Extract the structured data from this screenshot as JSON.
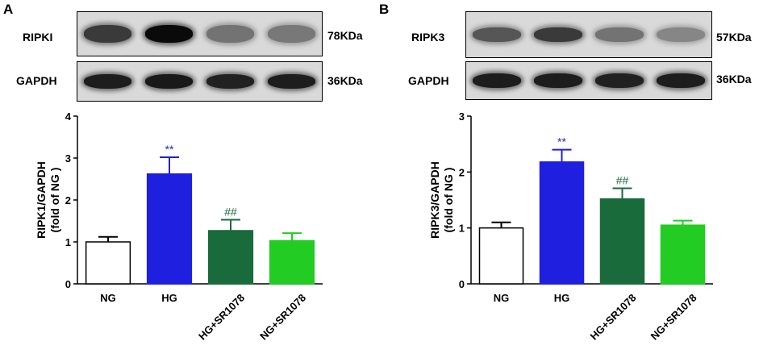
{
  "panels": [
    {
      "letter": "A",
      "blots": [
        {
          "protein": "RIPKI",
          "kda": "78KDa",
          "band_intensity": [
            0.75,
            1.0,
            0.45,
            0.42
          ]
        },
        {
          "protein": "GAPDH",
          "kda": "36KDa",
          "band_intensity": [
            0.9,
            0.92,
            0.88,
            0.9
          ]
        }
      ]
    },
    {
      "letter": "B",
      "blots": [
        {
          "protein": "RIPK3",
          "kda": "57KDa",
          "band_intensity": [
            0.6,
            0.75,
            0.45,
            0.35
          ]
        },
        {
          "protein": "GAPDH",
          "kda": "36KDa",
          "band_intensity": [
            0.9,
            0.9,
            0.88,
            0.9
          ]
        }
      ]
    }
  ],
  "chart_data": [
    {
      "type": "bar",
      "categories": [
        "NG",
        "HG",
        "HG+SR1078",
        "NG+SR1078"
      ],
      "values": [
        1.0,
        2.62,
        1.27,
        1.03
      ],
      "errors": [
        0.12,
        0.4,
        0.26,
        0.18
      ],
      "annotations": [
        "",
        "**",
        "##",
        ""
      ],
      "colors": [
        "#ffffff",
        "#1f1fe0",
        "#1a6b3c",
        "#22cc22"
      ],
      "annotation_colors": [
        "",
        "#1f1fe0",
        "#1a6b3c",
        ""
      ],
      "ylabel_line1": "RIPK1/GAPDH",
      "ylabel_line2": "(fold of NG )",
      "ylim": [
        0,
        4
      ],
      "yticks": [
        "0",
        "1",
        "2",
        "3",
        "4"
      ]
    },
    {
      "type": "bar",
      "categories": [
        "NG",
        "HG",
        "HG+SR1078",
        "NG+SR1078"
      ],
      "values": [
        1.0,
        2.18,
        1.52,
        1.05
      ],
      "errors": [
        0.1,
        0.22,
        0.19,
        0.08
      ],
      "annotations": [
        "",
        "**",
        "##",
        ""
      ],
      "colors": [
        "#ffffff",
        "#1f1fe0",
        "#1a6b3c",
        "#22cc22"
      ],
      "annotation_colors": [
        "",
        "#1f1fe0",
        "#1a6b3c",
        ""
      ],
      "ylabel_line1": "RIPK3/GAPDH",
      "ylabel_line2": "(fold of NG )",
      "ylim": [
        0,
        3
      ],
      "yticks": [
        "0",
        "1",
        "2",
        "3"
      ]
    }
  ]
}
